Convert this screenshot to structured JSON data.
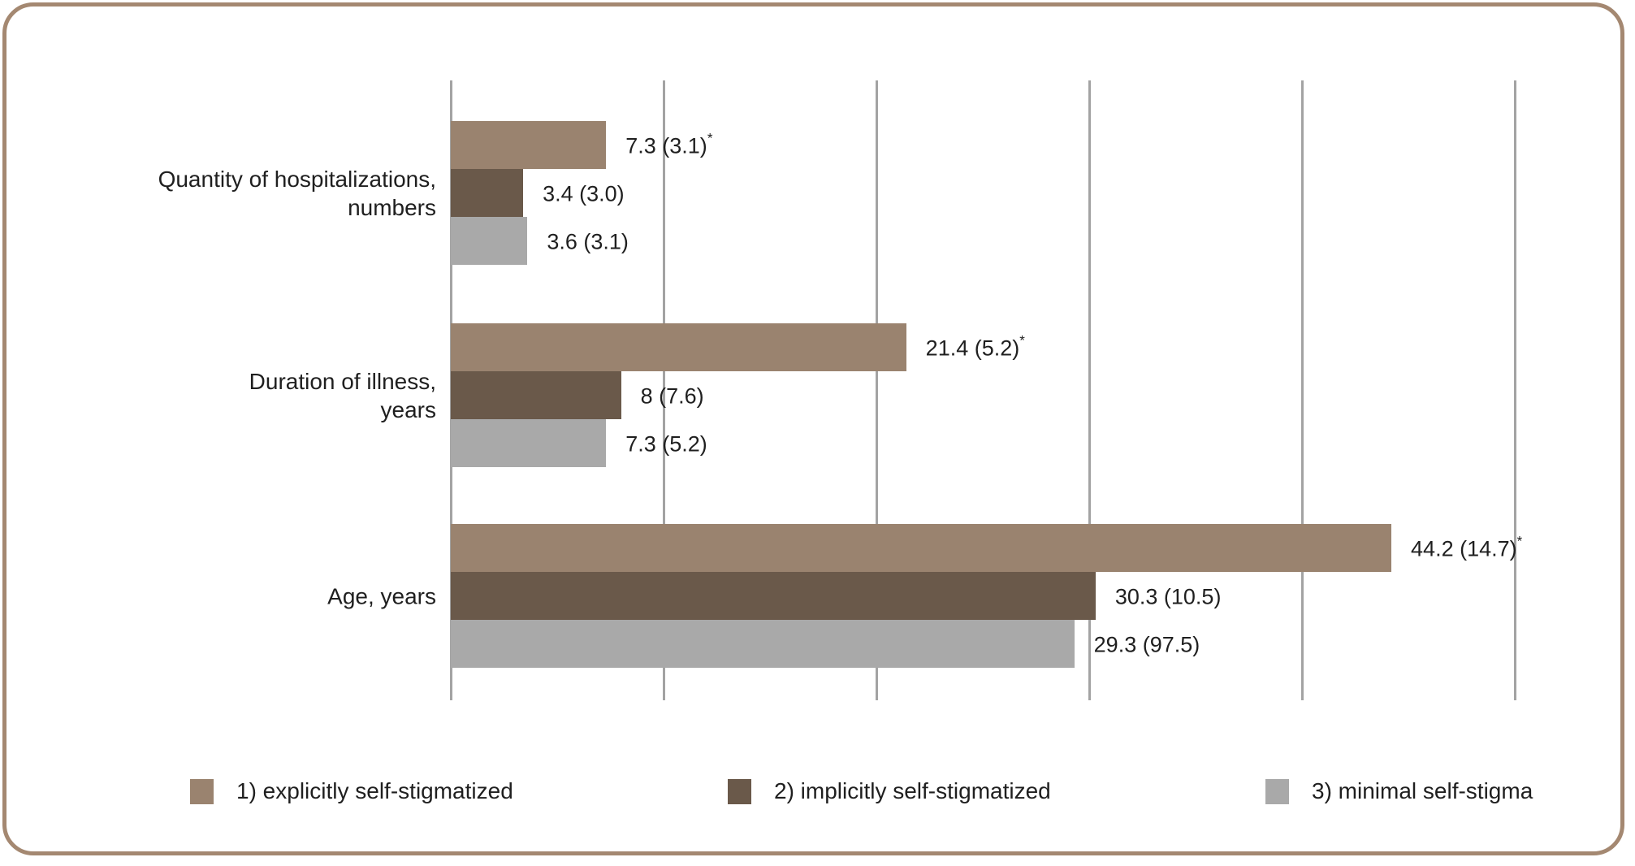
{
  "chart_data": {
    "type": "bar",
    "orientation": "horizontal",
    "title": "",
    "categories": [
      {
        "label": "Quantity of hospitalizations, numbers",
        "lines": [
          "Quantity of hospitalizations,",
          "numbers"
        ]
      },
      {
        "label": "Duration of illness, years",
        "lines": [
          "Duration of illness,",
          "years"
        ]
      },
      {
        "label": "Age, years",
        "lines": [
          "Age, years"
        ]
      }
    ],
    "series": [
      {
        "name": "1) explicitly self-stigmatized",
        "color": "#9a836f",
        "values": [
          7.3,
          21.4,
          44.2
        ],
        "data_labels": [
          "7.3 (3.1)",
          "21.4 (5.2)",
          "44.2 (14.7)"
        ],
        "label_superscript": "*"
      },
      {
        "name": "2) implicitly self-stigmatized",
        "color": "#6a594a",
        "values": [
          3.4,
          8,
          30.3
        ],
        "data_labels": [
          "3.4 (3.0)",
          "8 (7.6)",
          "30.3 (10.5)"
        ],
        "label_superscript": ""
      },
      {
        "name": "3) minimal self-stigma",
        "color": "#a9a9a9",
        "values": [
          3.6,
          7.3,
          29.3
        ],
        "data_labels": [
          "3.6 (3.1)",
          "7.3 (5.2)",
          "29.3 (97.5)"
        ],
        "label_superscript": ""
      }
    ],
    "x_ticks": [
      0,
      10,
      20,
      30,
      40,
      50
    ],
    "xlim": [
      0,
      50
    ],
    "grid": true,
    "legend_position": "bottom",
    "colors": {
      "gridline": "#a3a3a3",
      "text": "#1f1f1f",
      "frame_border": "#a48871",
      "background": "#ffffff"
    }
  }
}
